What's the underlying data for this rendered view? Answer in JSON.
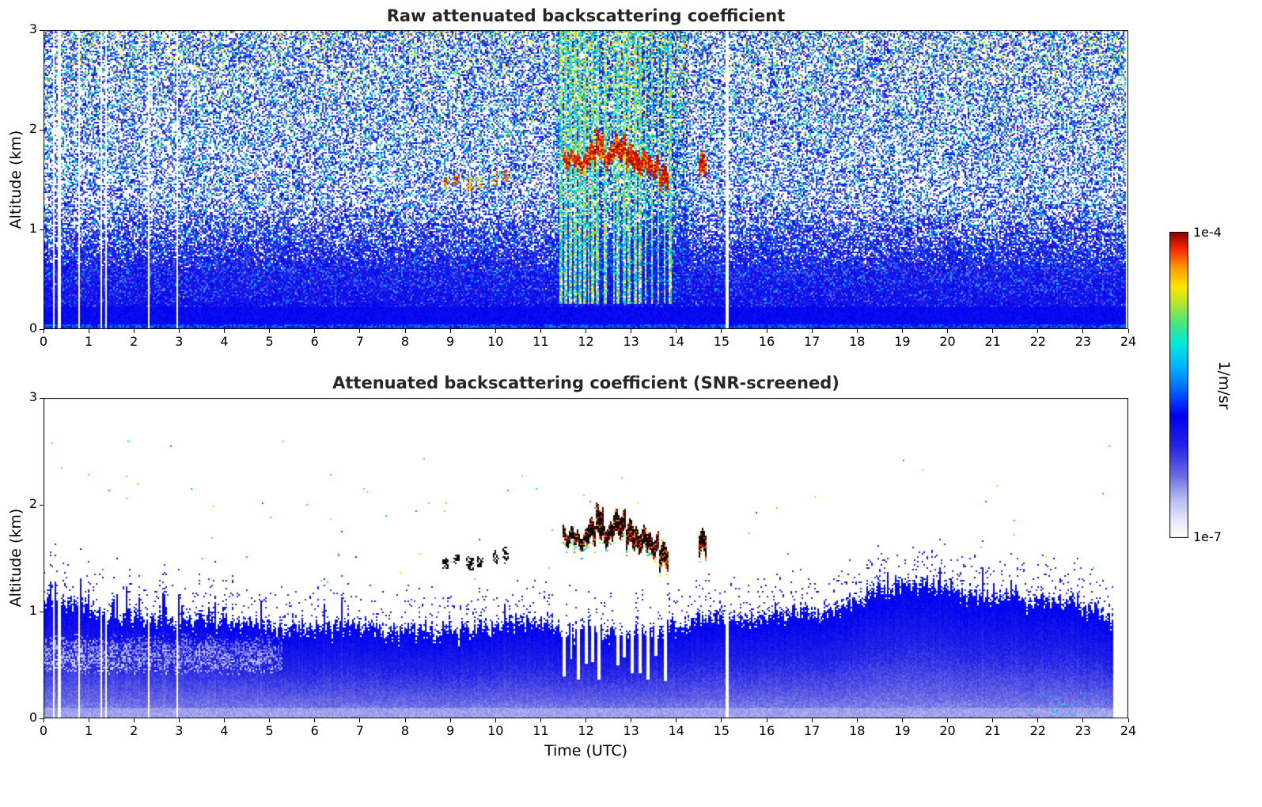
{
  "figure": {
    "background": "#ffffff",
    "title_color": "#262626",
    "axis_color": "#000000"
  },
  "colorbar": {
    "label": "1/m/sr",
    "top_label": "1e-4",
    "bottom_label": "1e-7",
    "scale": "log",
    "min": 1e-07,
    "max": 0.0001,
    "colormap_stops": [
      [
        0.0,
        "#ffffff"
      ],
      [
        0.05,
        "#e9e9fb"
      ],
      [
        0.12,
        "#babef1"
      ],
      [
        0.2,
        "#6b6be4"
      ],
      [
        0.3,
        "#2222e6"
      ],
      [
        0.4,
        "#0000f0"
      ],
      [
        0.48,
        "#0064ff"
      ],
      [
        0.56,
        "#00b4ff"
      ],
      [
        0.63,
        "#00e8dc"
      ],
      [
        0.7,
        "#46e682"
      ],
      [
        0.76,
        "#aae632"
      ],
      [
        0.82,
        "#ffe600"
      ],
      [
        0.88,
        "#ff9b00"
      ],
      [
        0.94,
        "#ff2a00"
      ],
      [
        1.0,
        "#7f0000"
      ]
    ]
  },
  "chart_data": [
    {
      "type": "heatmap",
      "panel": "top",
      "title": "Raw attenuated backscattering coefficient",
      "xlabel": "",
      "ylabel": "Altitude (km)",
      "xlim": [
        0,
        24
      ],
      "ylim": [
        0,
        3
      ],
      "xticks": [
        0,
        1,
        2,
        3,
        4,
        5,
        6,
        7,
        8,
        9,
        10,
        11,
        12,
        13,
        14,
        15,
        16,
        17,
        18,
        19,
        20,
        21,
        22,
        23,
        24
      ],
      "yticks": [
        0,
        1,
        2,
        3
      ],
      "grid": false,
      "colorbar": "shared, log 1e-7 to 1e-4 1/m/sr",
      "features": {
        "data_end_utc": 23.95,
        "missing_data_utc": [
          0.22,
          0.35,
          0.78,
          1.28,
          1.38,
          2.33,
          2.95,
          15.12
        ],
        "precip_stripes_utc": [
          11.46,
          11.56,
          11.66,
          11.76,
          11.86,
          11.96,
          12.06,
          12.16,
          12.26,
          12.44,
          12.62,
          12.72,
          12.84,
          12.96,
          13.08,
          13.2,
          13.32,
          13.46,
          13.6,
          13.74,
          13.86
        ],
        "precip_region_utc": [
          11.35,
          14.25
        ],
        "cloud_segments_utc_km": [
          [
            11.5,
            11.78,
            1.64,
            1.76
          ],
          [
            11.78,
            12.02,
            1.6,
            1.72
          ],
          [
            12.02,
            12.22,
            1.66,
            1.84
          ],
          [
            12.22,
            12.38,
            1.72,
            1.98
          ],
          [
            12.38,
            12.62,
            1.64,
            1.8
          ],
          [
            12.62,
            12.88,
            1.72,
            1.92
          ],
          [
            12.88,
            13.12,
            1.62,
            1.82
          ],
          [
            13.12,
            13.38,
            1.58,
            1.76
          ],
          [
            13.38,
            13.62,
            1.54,
            1.7
          ],
          [
            13.62,
            13.84,
            1.42,
            1.62
          ],
          [
            14.48,
            14.66,
            1.54,
            1.74
          ]
        ],
        "thin_cloud_dashes_utc_km": [
          [
            8.84,
            8.96,
            1.4,
            1.5
          ],
          [
            9.08,
            9.22,
            1.44,
            1.54
          ],
          [
            9.34,
            9.52,
            1.38,
            1.52
          ],
          [
            9.58,
            9.72,
            1.42,
            1.52
          ],
          [
            9.94,
            10.1,
            1.44,
            1.58
          ],
          [
            10.16,
            10.3,
            1.48,
            1.6
          ]
        ]
      }
    },
    {
      "type": "heatmap",
      "panel": "bottom",
      "title": "Attenuated backscattering coefficient (SNR-screened)",
      "xlabel": "Time (UTC)",
      "ylabel": "Altitude (km)",
      "xlim": [
        0,
        24
      ],
      "ylim": [
        0,
        3
      ],
      "xticks": [
        0,
        1,
        2,
        3,
        4,
        5,
        6,
        7,
        8,
        9,
        10,
        11,
        12,
        13,
        14,
        15,
        16,
        17,
        18,
        19,
        20,
        21,
        22,
        23,
        24
      ],
      "yticks": [
        0,
        1,
        2,
        3
      ],
      "grid": false,
      "colorbar": "shared, log 1e-7 to 1e-4 1/m/sr",
      "features": {
        "data_end_utc": 23.68,
        "missing_data_utc": [
          0.22,
          0.35,
          0.78,
          1.28,
          1.38,
          2.33,
          2.95,
          15.12
        ],
        "precip_gap_columns_utc": [
          11.52,
          11.68,
          11.84,
          12.0,
          12.16,
          12.3,
          12.7,
          12.86,
          13.02,
          13.2,
          13.38,
          13.56,
          13.76
        ],
        "precip_region_utc": [
          11.3,
          14.2
        ],
        "cloud_segments_utc_km": [
          [
            11.5,
            11.78,
            1.64,
            1.76
          ],
          [
            11.78,
            12.02,
            1.6,
            1.72
          ],
          [
            12.02,
            12.22,
            1.66,
            1.84
          ],
          [
            12.22,
            12.38,
            1.72,
            1.98
          ],
          [
            12.38,
            12.62,
            1.64,
            1.8
          ],
          [
            12.62,
            12.88,
            1.72,
            1.92
          ],
          [
            12.88,
            13.12,
            1.62,
            1.82
          ],
          [
            13.12,
            13.38,
            1.58,
            1.76
          ],
          [
            13.38,
            13.62,
            1.54,
            1.7
          ],
          [
            13.62,
            13.84,
            1.42,
            1.62
          ],
          [
            14.48,
            14.66,
            1.54,
            1.74
          ]
        ],
        "thin_cloud_dashes_utc_km": [
          [
            8.84,
            8.96,
            1.4,
            1.5
          ],
          [
            9.08,
            9.22,
            1.44,
            1.54
          ],
          [
            9.34,
            9.52,
            1.38,
            1.52
          ],
          [
            9.58,
            9.72,
            1.42,
            1.52
          ],
          [
            9.94,
            10.1,
            1.44,
            1.58
          ],
          [
            10.16,
            10.3,
            1.48,
            1.6
          ]
        ],
        "mixed_layer_top_km": [
          [
            0,
            1.1
          ],
          [
            0.7,
            1.12
          ],
          [
            1.2,
            1.04
          ],
          [
            2,
            1.02
          ],
          [
            2.8,
            0.98
          ],
          [
            3.6,
            1.0
          ],
          [
            4.4,
            0.96
          ],
          [
            5.2,
            0.92
          ],
          [
            6,
            0.9
          ],
          [
            6.8,
            0.92
          ],
          [
            7.6,
            0.88
          ],
          [
            8.4,
            0.86
          ],
          [
            9.2,
            0.88
          ],
          [
            10,
            0.92
          ],
          [
            10.6,
            1.0
          ],
          [
            11.2,
            0.94
          ],
          [
            11.6,
            0.88
          ],
          [
            12,
            0.92
          ],
          [
            12.4,
            0.86
          ],
          [
            12.8,
            0.9
          ],
          [
            13.2,
            0.86
          ],
          [
            13.6,
            0.88
          ],
          [
            14,
            0.92
          ],
          [
            14.4,
            0.98
          ],
          [
            15,
            1.04
          ],
          [
            15.6,
            1.0
          ],
          [
            16.2,
            1.04
          ],
          [
            16.8,
            1.08
          ],
          [
            17.4,
            1.06
          ],
          [
            18,
            1.18
          ],
          [
            18.6,
            1.3
          ],
          [
            19.2,
            1.33
          ],
          [
            19.8,
            1.28
          ],
          [
            20.4,
            1.22
          ],
          [
            21,
            1.2
          ],
          [
            21.6,
            1.16
          ],
          [
            22.2,
            1.2
          ],
          [
            22.8,
            1.14
          ],
          [
            23.4,
            1.06
          ],
          [
            23.68,
            0.98
          ]
        ]
      }
    }
  ]
}
